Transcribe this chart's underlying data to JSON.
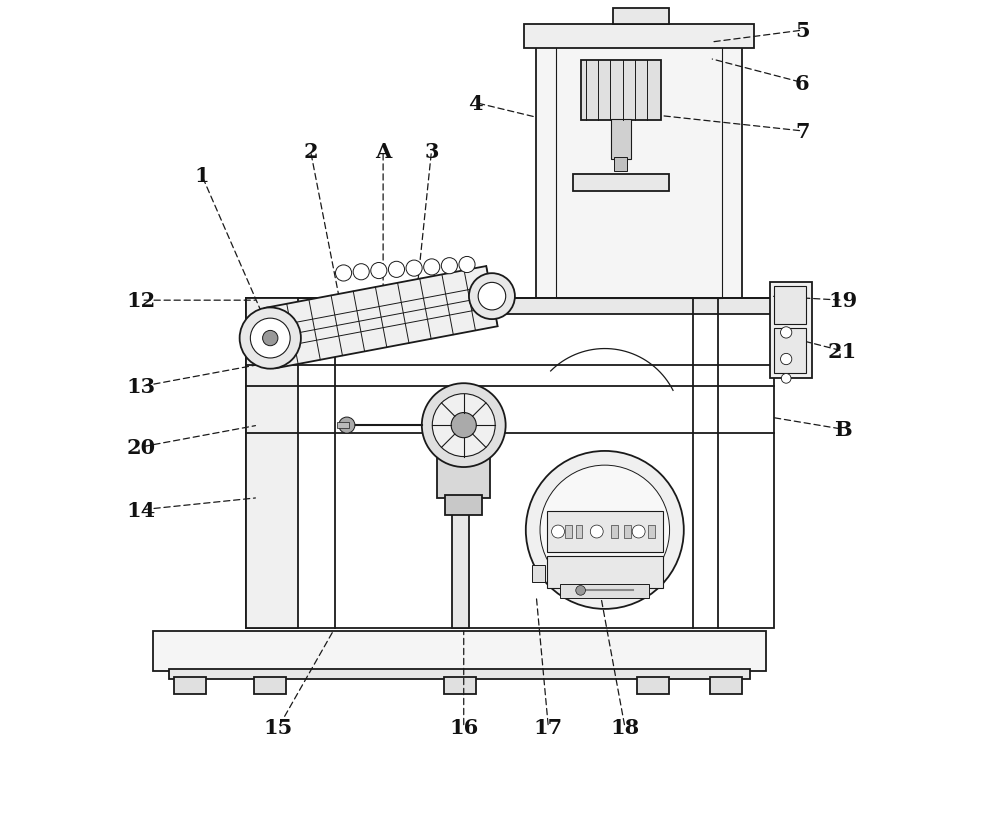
{
  "bg_color": "#ffffff",
  "line_color": "#1a1a1a",
  "lw": 1.3,
  "labels_leader": [
    [
      "1",
      [
        0.215,
        0.595
      ],
      [
        0.13,
        0.79
      ]
    ],
    [
      "2",
      [
        0.305,
        0.615
      ],
      [
        0.265,
        0.82
      ]
    ],
    [
      "A",
      [
        0.355,
        0.625
      ],
      [
        0.355,
        0.82
      ]
    ],
    [
      "3",
      [
        0.395,
        0.628
      ],
      [
        0.415,
        0.82
      ]
    ],
    [
      "4",
      [
        0.545,
        0.862
      ],
      [
        0.47,
        0.88
      ]
    ],
    [
      "5",
      [
        0.76,
        0.955
      ],
      [
        0.875,
        0.97
      ]
    ],
    [
      "6",
      [
        0.76,
        0.935
      ],
      [
        0.875,
        0.905
      ]
    ],
    [
      "7",
      [
        0.69,
        0.865
      ],
      [
        0.875,
        0.845
      ]
    ],
    [
      "12",
      [
        0.2,
        0.635
      ],
      [
        0.055,
        0.635
      ]
    ],
    [
      "13",
      [
        0.2,
        0.555
      ],
      [
        0.055,
        0.528
      ]
    ],
    [
      "20",
      [
        0.2,
        0.48
      ],
      [
        0.055,
        0.453
      ]
    ],
    [
      "14",
      [
        0.2,
        0.39
      ],
      [
        0.055,
        0.375
      ]
    ],
    [
      "15",
      [
        0.295,
        0.228
      ],
      [
        0.225,
        0.105
      ]
    ],
    [
      "16",
      [
        0.455,
        0.228
      ],
      [
        0.455,
        0.105
      ]
    ],
    [
      "17",
      [
        0.545,
        0.268
      ],
      [
        0.56,
        0.105
      ]
    ],
    [
      "18",
      [
        0.625,
        0.268
      ],
      [
        0.655,
        0.105
      ]
    ],
    [
      "19",
      [
        0.835,
        0.64
      ],
      [
        0.925,
        0.635
      ]
    ],
    [
      "21",
      [
        0.835,
        0.595
      ],
      [
        0.925,
        0.572
      ]
    ],
    [
      "B",
      [
        0.835,
        0.49
      ],
      [
        0.925,
        0.475
      ]
    ]
  ]
}
